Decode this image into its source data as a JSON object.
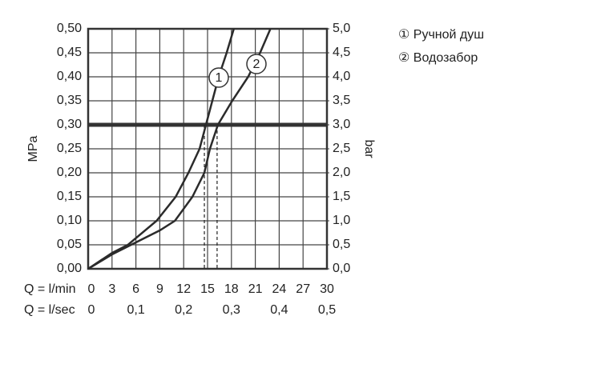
{
  "chart_data": {
    "type": "line",
    "xlabel": "Q = l/min",
    "x2label": "Q = l/sec",
    "ylabel": "MPa",
    "y2label": "bar",
    "xlim": [
      0,
      30
    ],
    "xticks": [
      0,
      3,
      6,
      9,
      12,
      15,
      18,
      21,
      24,
      27,
      30
    ],
    "x2lim": [
      0,
      0.5
    ],
    "x2ticks": [
      0,
      {
        "value": 0.1,
        "label": "0,1"
      },
      {
        "value": 0.2,
        "label": "0,2"
      },
      {
        "value": 0.3,
        "label": "0,3"
      },
      {
        "value": 0.4,
        "label": "0,4"
      },
      {
        "value": 0.5,
        "label": "0,5"
      }
    ],
    "ylim": [
      0,
      0.5
    ],
    "yticks": [
      {
        "value": 0,
        "label": "0,00"
      },
      {
        "value": 0.05,
        "label": "0,05"
      },
      {
        "value": 0.1,
        "label": "0,10"
      },
      {
        "value": 0.15,
        "label": "0,15"
      },
      {
        "value": 0.2,
        "label": "0,20"
      },
      {
        "value": 0.25,
        "label": "0,25"
      },
      {
        "value": 0.3,
        "label": "0,30"
      },
      {
        "value": 0.35,
        "label": "0,35"
      },
      {
        "value": 0.4,
        "label": "0,40"
      },
      {
        "value": 0.45,
        "label": "0,45"
      },
      {
        "value": 0.5,
        "label": "0,50"
      }
    ],
    "y2lim": [
      0,
      5
    ],
    "y2ticks": [
      {
        "value": 0,
        "label": "0,0"
      },
      {
        "value": 0.5,
        "label": "0,5"
      },
      {
        "value": 1,
        "label": "1,0"
      },
      {
        "value": 1.5,
        "label": "1,5"
      },
      {
        "value": 2,
        "label": "2,0"
      },
      {
        "value": 2.5,
        "label": "2,5"
      },
      {
        "value": 3,
        "label": "3,0"
      },
      {
        "value": 3.5,
        "label": "3,5"
      },
      {
        "value": 4,
        "label": "4,0"
      },
      {
        "value": 4.5,
        "label": "4,5"
      },
      {
        "value": 5,
        "label": "5,0"
      }
    ],
    "grid": true,
    "reference_line": 0.3,
    "drop_lines": [
      14.6,
      16.2
    ],
    "curve_labels": [
      "1",
      "2"
    ],
    "series": [
      {
        "name": "① Ручной душ",
        "color": "#2b2b2b",
        "x": [
          0,
          3,
          5,
          8.6,
          11,
          12.6,
          14,
          14.8,
          15.6,
          16.4,
          17.4,
          18.3
        ],
        "values": [
          0,
          0.033,
          0.05,
          0.1,
          0.15,
          0.2,
          0.25,
          0.3,
          0.35,
          0.4,
          0.45,
          0.5
        ]
      },
      {
        "name": "② Водозабор",
        "color": "#2b2b2b",
        "x": [
          0,
          3,
          6,
          9,
          10.9,
          13.1,
          14.6,
          15.3,
          16.3,
          18.1,
          20.1,
          21.6,
          22.9
        ],
        "values": [
          0,
          0.03,
          0.055,
          0.08,
          0.1,
          0.15,
          0.2,
          0.25,
          0.3,
          0.35,
          0.4,
          0.45,
          0.5
        ]
      }
    ]
  }
}
